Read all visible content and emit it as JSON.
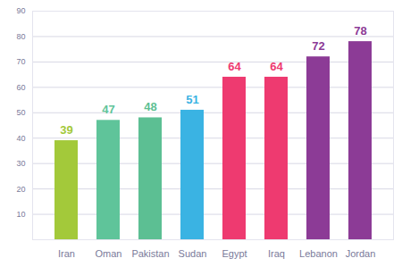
{
  "chart_data": {
    "type": "bar",
    "categories": [
      "Iran",
      "Oman",
      "Pakistan",
      "Sudan",
      "Egypt",
      "Iraq",
      "Lebanon",
      "Jordan"
    ],
    "values": [
      39,
      47,
      48,
      51,
      64,
      64,
      72,
      78
    ],
    "colors": [
      "#a3c93a",
      "#5fc49a",
      "#5cbf93",
      "#3ab3e3",
      "#ee3a70",
      "#ee3a70",
      "#8c3b96",
      "#8c3b96"
    ],
    "ylim": [
      0,
      90
    ],
    "yticks": [
      10,
      20,
      30,
      40,
      50,
      60,
      70,
      80,
      90
    ],
    "grid": true,
    "data_labels": true
  }
}
